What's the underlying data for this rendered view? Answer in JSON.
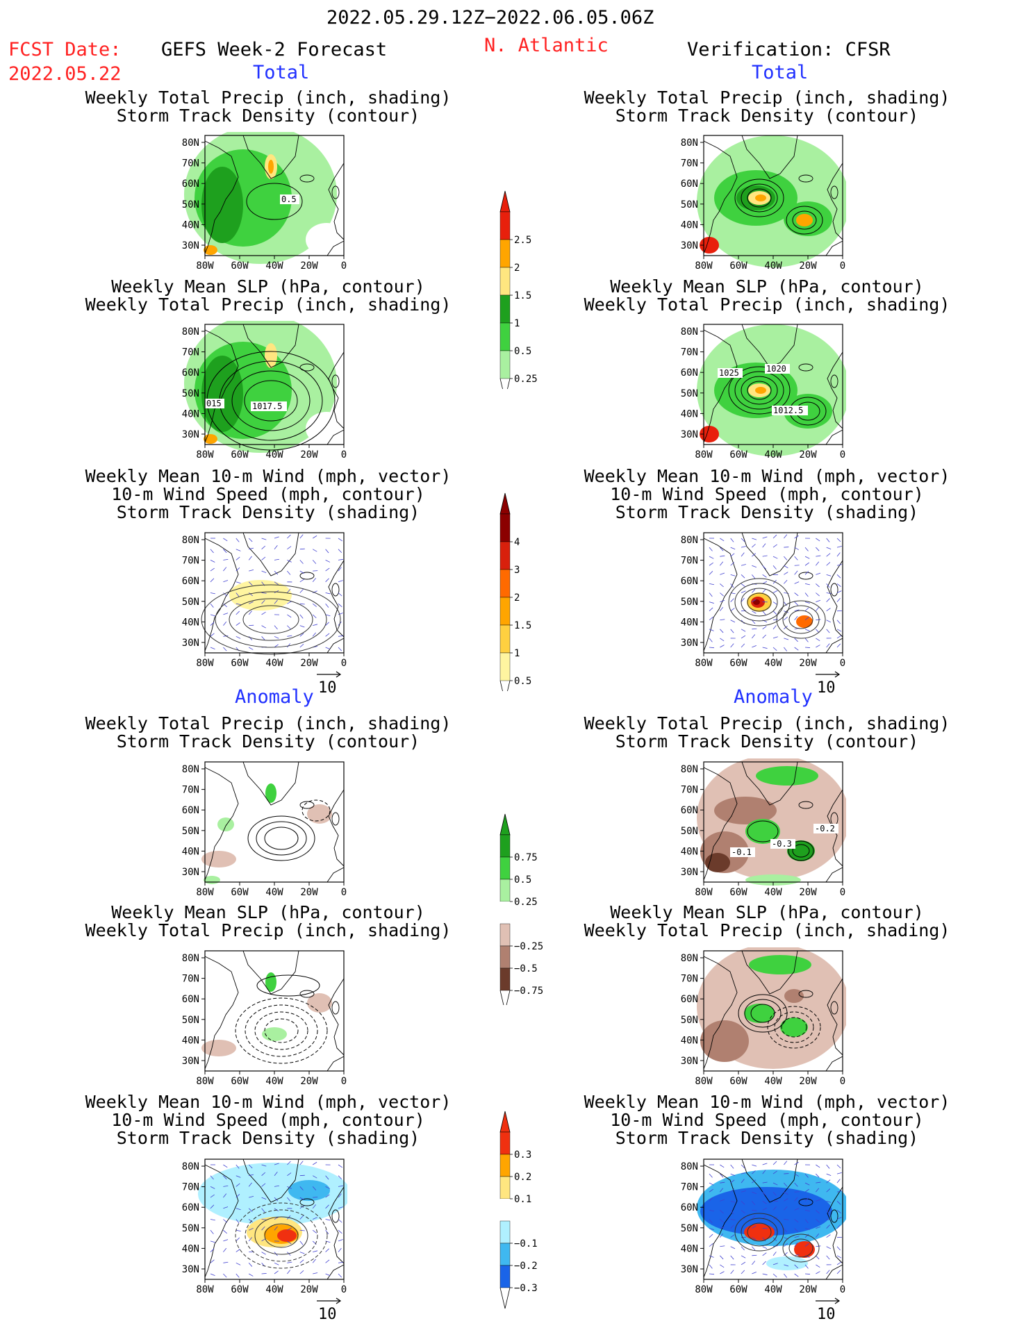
{
  "header": {
    "period": "2022.05.29.12Z−2022.06.05.06Z",
    "fcst_label": "FCST Date:",
    "fcst_date": "2022.05.22",
    "left_title": "GEFS Week-2 Forecast",
    "region": "N. Atlantic",
    "right_title": "Verification: CFSR"
  },
  "sections": {
    "total": "Total",
    "anomaly": "Anomaly"
  },
  "panel_titles": {
    "precip_track": [
      "Weekly Total Precip (inch, shading)",
      "Storm Track Density (contour)"
    ],
    "slp_precip": [
      "Weekly Mean SLP (hPa, contour)",
      "Weekly Total Precip (inch, shading)"
    ],
    "wind_track": [
      "Weekly Mean 10-m Wind (mph, vector)",
      "10-m Wind Speed (mph, contour)",
      "Storm Track Density (shading)"
    ]
  },
  "axes": {
    "lat_labels": [
      "80N",
      "70N",
      "60N",
      "50N",
      "40N",
      "30N"
    ],
    "lon_labels": [
      "80W",
      "60W",
      "40W",
      "20W",
      "0"
    ]
  },
  "vector_ref": "10",
  "contour_labels": {
    "p1": "0.5",
    "p2": [
      "015",
      "1017.5"
    ],
    "p8": [
      "1025",
      "1020",
      "1012.5"
    ],
    "p10": [
      "-0.1",
      "-0.3",
      "-0.2"
    ]
  },
  "colorbars": {
    "precip_total": {
      "labels": [
        "2.5",
        "2",
        "1.5",
        "1",
        "0.5",
        "0.25"
      ],
      "colors": [
        "#e8200c",
        "#ffa500",
        "#ffe680",
        "#1ea01e",
        "#3fd13f",
        "#a9f0a0"
      ]
    },
    "track_total": {
      "labels": [
        "4",
        "3",
        "2",
        "1.5",
        "1",
        "0.5"
      ],
      "colors": [
        "#8b0000",
        "#d8200c",
        "#ff6a00",
        "#ffa500",
        "#ffd040",
        "#fff5a0"
      ]
    },
    "precip_anom": {
      "labels": [
        "0.75",
        "0.5",
        "0.25",
        "−0.25",
        "−0.5",
        "−0.75"
      ],
      "colors": [
        "#1ea01e",
        "#3fd13f",
        "#a9f0a0",
        "#ffffff",
        "#e0c0b4",
        "#b08070",
        "#6b3b2b"
      ]
    },
    "track_anom": {
      "labels": [
        "0.3",
        "0.2",
        "0.1",
        "−0.1",
        "−0.2",
        "−0.3"
      ],
      "colors": [
        "#f03010",
        "#ffa500",
        "#ffe680",
        "#ffffff",
        "#b0f0ff",
        "#3fb8f0",
        "#1a64e8"
      ]
    }
  },
  "chart_data": [
    {
      "type": "heatmap",
      "panel": "forecast total precip + storm track",
      "title": "Weekly Total Precip (inch, shading) / Storm Track Density (contour)",
      "x_range": [
        "80W",
        "0"
      ],
      "y_range": [
        "30N",
        "80N"
      ],
      "contour_labels": [
        "0.5"
      ]
    },
    {
      "type": "heatmap",
      "panel": "verification total precip + storm track",
      "title": "Weekly Total Precip (inch, shading) / Storm Track Density (contour)",
      "x_range": [
        "80W",
        "0"
      ],
      "y_range": [
        "30N",
        "80N"
      ]
    },
    {
      "type": "heatmap",
      "panel": "forecast mean SLP + precip",
      "title": "Weekly Mean SLP (hPa, contour) / Weekly Total Precip (inch, shading)",
      "x_range": [
        "80W",
        "0"
      ],
      "y_range": [
        "30N",
        "80N"
      ],
      "contour_labels": [
        "015",
        "1017.5"
      ]
    },
    {
      "type": "heatmap",
      "panel": "verification mean SLP + precip",
      "title": "Weekly Mean SLP (hPa, contour) / Weekly Total Precip (inch, shading)",
      "x_range": [
        "80W",
        "0"
      ],
      "y_range": [
        "30N",
        "80N"
      ],
      "contour_labels": [
        "1025",
        "1020",
        "1012.5"
      ]
    },
    {
      "type": "heatmap",
      "panel": "forecast 10-m wind + storm track",
      "title": "Weekly Mean 10-m Wind (mph, vector) / 10-m Wind Speed (mph, contour) / Storm Track Density (shading)",
      "x_range": [
        "80W",
        "0"
      ],
      "y_range": [
        "30N",
        "80N"
      ]
    },
    {
      "type": "heatmap",
      "panel": "verification 10-m wind + storm track",
      "title": "Weekly Mean 10-m Wind (mph, vector) / 10-m Wind Speed (mph, contour) / Storm Track Density (shading)",
      "x_range": [
        "80W",
        "0"
      ],
      "y_range": [
        "30N",
        "80N"
      ]
    },
    {
      "type": "heatmap",
      "panel": "forecast precip anomaly + storm track",
      "title": "Weekly Total Precip (inch, shading) / Storm Track Density (contour)",
      "x_range": [
        "80W",
        "0"
      ],
      "y_range": [
        "30N",
        "80N"
      ]
    },
    {
      "type": "heatmap",
      "panel": "verification precip anomaly + storm track",
      "title": "Weekly Total Precip (inch, shading) / Storm Track Density (contour)",
      "x_range": [
        "80W",
        "0"
      ],
      "y_range": [
        "30N",
        "80N"
      ],
      "contour_labels": [
        "-0.1",
        "-0.3",
        "-0.2"
      ]
    },
    {
      "type": "heatmap",
      "panel": "forecast SLP anomaly + precip",
      "title": "Weekly Mean SLP (hPa, contour) / Weekly Total Precip (inch, shading)",
      "x_range": [
        "80W",
        "0"
      ],
      "y_range": [
        "30N",
        "80N"
      ]
    },
    {
      "type": "heatmap",
      "panel": "verification SLP anomaly + precip",
      "title": "Weekly Mean SLP (hPa, contour) / Weekly Total Precip (inch, shading)",
      "x_range": [
        "80W",
        "0"
      ],
      "y_range": [
        "30N",
        "80N"
      ]
    },
    {
      "type": "heatmap",
      "panel": "forecast wind anomaly + storm track",
      "title": "Weekly Mean 10-m Wind (mph, vector) / 10-m Wind Speed (mph, contour) / Storm Track Density (shading)",
      "x_range": [
        "80W",
        "0"
      ],
      "y_range": [
        "30N",
        "80N"
      ]
    },
    {
      "type": "heatmap",
      "panel": "verification wind anomaly + storm track",
      "title": "Weekly Mean 10-m Wind (mph, vector) / 10-m Wind Speed (mph, contour) / Storm Track Density (shading)",
      "x_range": [
        "80W",
        "0"
      ],
      "y_range": [
        "30N",
        "80N"
      ]
    }
  ]
}
